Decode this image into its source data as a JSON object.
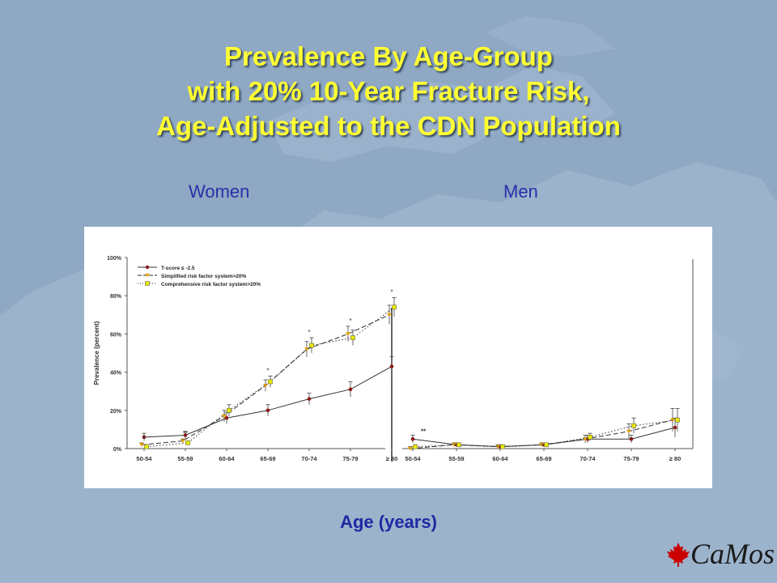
{
  "title_lines": [
    "Prevalence By Age-Group",
    "with 20% 10-Year Fracture Risk,",
    "Age-Adjusted to the CDN Population"
  ],
  "panel_women": "Women",
  "panel_men": "Men",
  "x_axis_label": "Age (years)",
  "logo_text": "CaMos",
  "colors": {
    "title": "#ffff33",
    "panel_label": "#2b2fa8",
    "background": "#8fa8c4",
    "tscore_marker": "#8b1a1a",
    "comprehensive_marker": "#e8e800"
  },
  "chart_data": [
    {
      "type": "line",
      "panel": "Women",
      "categories": [
        "50-54",
        "55-59",
        "60-64",
        "65-69",
        "70-74",
        "75-79",
        "≥ 80"
      ],
      "ylabel": "Prevalence (percent)",
      "ylim": [
        0,
        100
      ],
      "yticks": [
        "0%",
        "20%",
        "40%",
        "60%",
        "80%",
        "100%"
      ],
      "legend_position": "top-left",
      "series": [
        {
          "name": "T-score ≤ -2.5",
          "values": [
            6,
            7,
            16,
            20,
            26,
            31,
            43
          ],
          "errors": [
            2,
            2,
            3,
            3,
            3,
            4,
            5
          ]
        },
        {
          "name": "Simplified risk factor system>20%",
          "values": [
            2,
            4,
            17,
            33,
            52,
            60,
            70
          ],
          "errors": [
            1,
            1,
            3,
            3,
            4,
            4,
            5
          ]
        },
        {
          "name": "Comprehensive risk factor system>20%",
          "values": [
            1,
            3,
            20,
            35,
            54,
            58,
            74
          ],
          "errors": [
            1,
            1,
            3,
            3,
            4,
            4,
            5
          ]
        }
      ],
      "annotations": [
        "*",
        "**",
        "*",
        "*",
        "*",
        "*"
      ]
    },
    {
      "type": "line",
      "panel": "Men",
      "categories": [
        "50-54",
        "55-59",
        "60-64",
        "65-69",
        "70-74",
        "75-79",
        "≥ 80"
      ],
      "ylim": [
        0,
        100
      ],
      "series": [
        {
          "name": "T-score ≤ -2.5",
          "values": [
            5,
            2,
            1,
            2,
            5,
            5,
            11
          ],
          "errors": [
            2,
            1,
            1,
            1,
            2,
            2,
            5
          ]
        },
        {
          "name": "Simplified risk factor system>20%",
          "values": [
            0,
            2,
            1,
            2,
            5,
            9,
            15
          ],
          "errors": [
            1,
            1,
            1,
            1,
            2,
            4,
            6
          ]
        },
        {
          "name": "Comprehensive risk factor system>20%",
          "values": [
            1,
            2,
            1,
            2,
            6,
            12,
            15
          ],
          "errors": [
            1,
            1,
            1,
            1,
            2,
            4,
            6
          ]
        }
      ],
      "annotations": [
        "**"
      ]
    }
  ]
}
